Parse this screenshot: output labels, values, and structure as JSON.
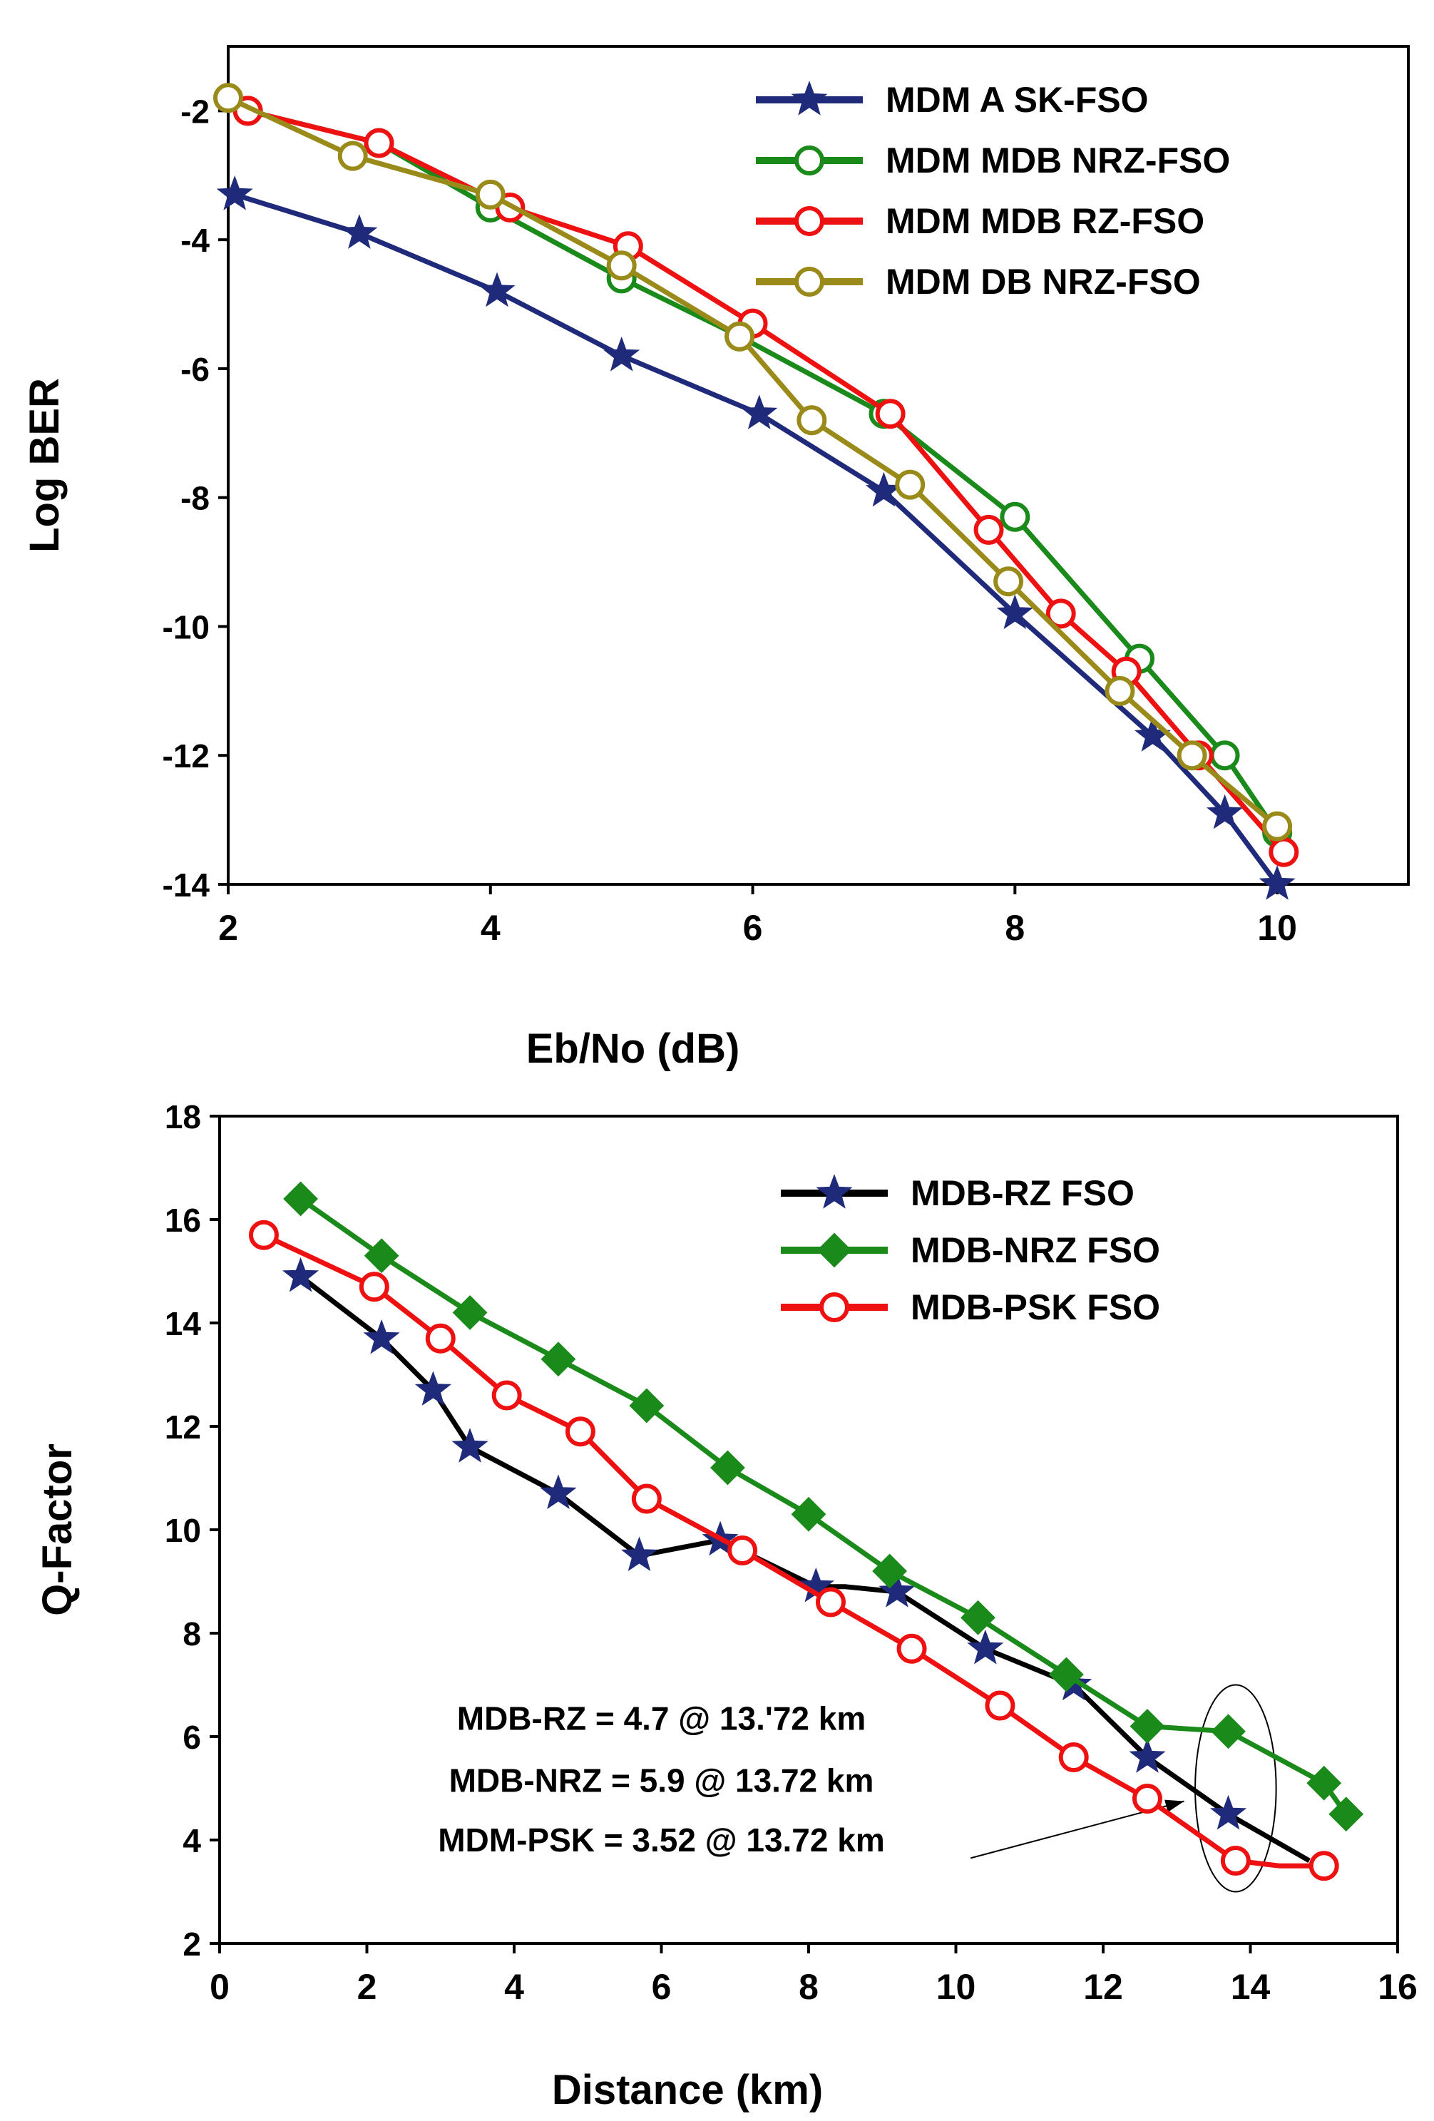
{
  "chart_data": [
    {
      "type": "line",
      "title": "",
      "xlabel": "Eb/No (dB)",
      "ylabel": "Log BER",
      "xlim": [
        2,
        11
      ],
      "ylim": [
        -14,
        -1
      ],
      "xticks": [
        2,
        4,
        6,
        8,
        10
      ],
      "yticks": [
        -2,
        -4,
        -6,
        -8,
        -10,
        -12,
        -14
      ],
      "legend_position": "top-right",
      "series": [
        {
          "name": "MDM ASK-FSO",
          "label": "MDM A SK-FSO",
          "color": "#1f2a7a",
          "marker": "star",
          "x": [
            2.05,
            3.0,
            4.05,
            5.0,
            6.05,
            7.0,
            8.0,
            9.05,
            9.6,
            10.0
          ],
          "y": [
            -3.3,
            -3.9,
            -4.8,
            -5.8,
            -6.7,
            -7.9,
            -9.8,
            -11.7,
            -12.9,
            -14.0
          ]
        },
        {
          "name": "MDM MDB NRZ-FSO",
          "label": "MDM MDB NRZ-FSO",
          "color": "#1a8a1a",
          "marker": "open-circle",
          "x": [
            2.15,
            3.15,
            4.0,
            5.0,
            5.9,
            7.0,
            8.0,
            8.95,
            9.6,
            10.0
          ],
          "y": [
            -2.0,
            -2.5,
            -3.5,
            -4.6,
            -5.5,
            -6.7,
            -8.3,
            -10.5,
            -12.0,
            -13.2
          ]
        },
        {
          "name": "MDM MDB RZ-FSO",
          "label": "MDM MDB RZ-FSO",
          "color": "#ee1111",
          "marker": "open-circle",
          "x": [
            2.15,
            3.15,
            4.15,
            5.05,
            6.0,
            7.05,
            7.8,
            8.35,
            8.85,
            9.4,
            10.05
          ],
          "y": [
            -2.0,
            -2.5,
            -3.5,
            -4.1,
            -5.3,
            -6.7,
            -8.5,
            -9.8,
            -10.7,
            -12.0,
            -13.5
          ]
        },
        {
          "name": "MDM DB NRZ-FSO",
          "label": "MDM DB NRZ-FSO",
          "color": "#9a8a1a",
          "marker": "open-circle",
          "x": [
            2.0,
            2.95,
            4.0,
            5.0,
            5.9,
            6.45,
            7.2,
            7.95,
            8.8,
            9.35,
            10.0
          ],
          "y": [
            -1.8,
            -2.7,
            -3.3,
            -4.4,
            -5.5,
            -6.8,
            -7.8,
            -9.3,
            -11.0,
            -12.0,
            -13.1
          ]
        }
      ]
    },
    {
      "type": "line",
      "title": "",
      "xlabel": "Distance (km)",
      "ylabel": "Q-Factor",
      "xlim": [
        0,
        16
      ],
      "ylim": [
        2,
        18
      ],
      "xticks": [
        0,
        2,
        4,
        6,
        8,
        10,
        12,
        14,
        16
      ],
      "yticks": [
        2,
        4,
        6,
        8,
        10,
        12,
        14,
        16,
        18
      ],
      "legend_position": "top-right",
      "series": [
        {
          "name": "MDB-RZ FSO",
          "label": "MDB-RZ FSO",
          "color": "#000000",
          "markerColor": "#1f2a7a",
          "marker": "star",
          "x": [
            1.1,
            2.2,
            2.9,
            3.4,
            4.6,
            5.7,
            6.8,
            8.1,
            8.5,
            9.2,
            10.4,
            11.6,
            12.6,
            13.7,
            14.8
          ],
          "y": [
            14.9,
            13.7,
            12.7,
            11.6,
            10.7,
            9.5,
            9.8,
            8.9,
            8.9,
            8.8,
            7.7,
            7.0,
            5.6,
            4.5,
            3.6
          ],
          "markers": [
            true,
            true,
            true,
            true,
            true,
            true,
            true,
            true,
            false,
            true,
            true,
            true,
            true,
            true,
            false
          ]
        },
        {
          "name": "MDB-NRZ FSO",
          "label": "MDB-NRZ FSO",
          "color": "#1a8a1a",
          "marker": "diamond",
          "x": [
            1.1,
            2.2,
            3.4,
            4.6,
            5.8,
            6.9,
            8.0,
            9.1,
            10.3,
            11.5,
            12.6,
            13.7,
            15.0,
            15.3
          ],
          "y": [
            16.4,
            15.3,
            14.2,
            13.3,
            12.4,
            11.2,
            10.3,
            9.2,
            8.3,
            7.2,
            6.2,
            6.1,
            5.1,
            4.5
          ]
        },
        {
          "name": "MDB-PSK FSO",
          "label": "MDB-PSK FSO",
          "color": "#ee1111",
          "marker": "open-circle",
          "x": [
            0.6,
            2.1,
            3.0,
            3.9,
            4.9,
            5.8,
            7.1,
            8.3,
            9.4,
            10.6,
            11.6,
            12.6,
            13.8,
            14.4,
            15.0
          ],
          "y": [
            15.7,
            14.7,
            13.7,
            12.6,
            11.9,
            10.6,
            9.6,
            8.6,
            7.7,
            6.6,
            5.6,
            4.8,
            3.6,
            3.5,
            3.5
          ],
          "markers": [
            true,
            true,
            true,
            true,
            true,
            true,
            true,
            true,
            true,
            true,
            true,
            true,
            true,
            false,
            true
          ]
        }
      ],
      "annotations": [
        {
          "text": "MDB-RZ = 4.7 @ 13.'72 km",
          "x": 6.0,
          "y": 6.35
        },
        {
          "text": "MDB-NRZ = 5.9 @ 13.72 km",
          "x": 6.0,
          "y": 5.15
        },
        {
          "text": "MDM-PSK = 3.52 @ 13.72 km",
          "x": 6.0,
          "y": 4.0
        }
      ],
      "highlight": {
        "x": 13.8,
        "y": 5.0,
        "rx": 0.55,
        "ry": 2.0
      },
      "arrow": {
        "from": [
          10.2,
          3.65
        ],
        "to": [
          13.1,
          4.75
        ]
      }
    }
  ]
}
